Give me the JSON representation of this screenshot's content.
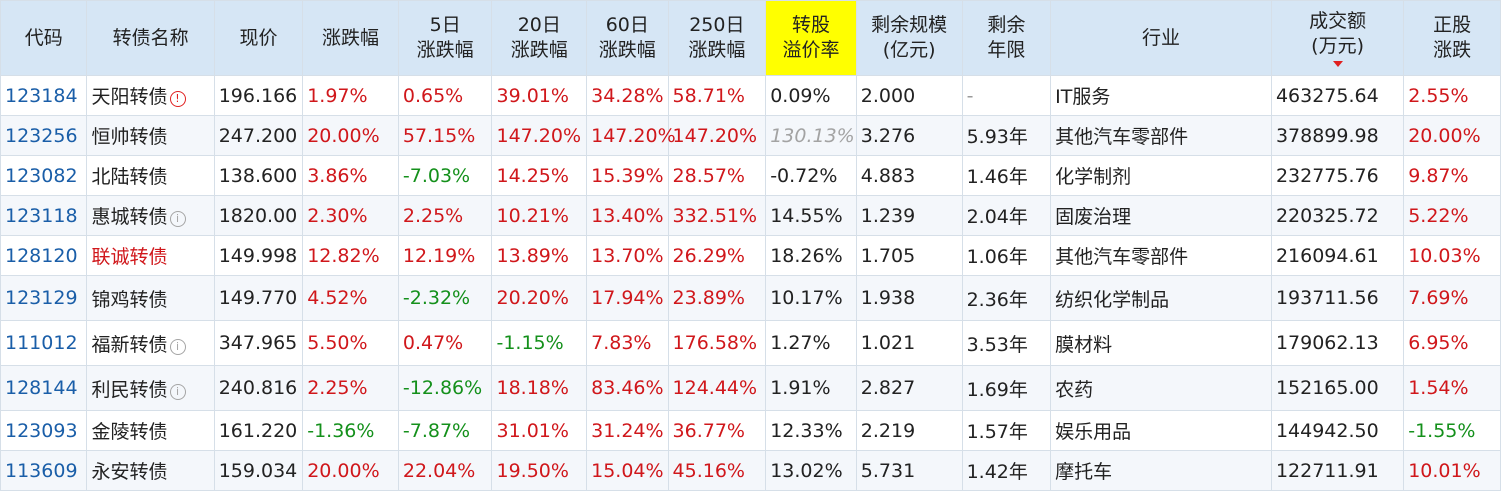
{
  "headers": [
    {
      "line1": "代码",
      "line2": ""
    },
    {
      "line1": "转债名称",
      "line2": ""
    },
    {
      "line1": "现价",
      "line2": ""
    },
    {
      "line1": "涨跌幅",
      "line2": ""
    },
    {
      "line1": "5日",
      "line2": "涨跌幅"
    },
    {
      "line1": "20日",
      "line2": "涨跌幅"
    },
    {
      "line1": "60日",
      "line2": "涨跌幅"
    },
    {
      "line1": "250日",
      "line2": "涨跌幅"
    },
    {
      "line1": "转股",
      "line2": "溢价率"
    },
    {
      "line1": "剩余规模",
      "line2": "(亿元)"
    },
    {
      "line1": "剩余",
      "line2": "年限"
    },
    {
      "line1": "行业",
      "line2": ""
    },
    {
      "line1": "成交额",
      "line2": "(万元)"
    },
    {
      "line1": "正股",
      "line2": "涨跌"
    }
  ],
  "sort_column": "成交额",
  "rows": [
    {
      "code": "123184",
      "name": "天阳转债",
      "name_color": "default",
      "icon": "alert",
      "price": "196.166",
      "chg": "1.97%",
      "chg5": "0.65%",
      "chg20": "39.01%",
      "chg60": "34.28%",
      "chg250": "58.71%",
      "premium": "0.09%",
      "premium_style": "default",
      "scale": "2.000",
      "years": "-",
      "industry": "IT服务",
      "turnover": "463275.64",
      "stock_chg": "2.55%"
    },
    {
      "code": "123256",
      "name": "恒帅转债",
      "name_color": "default",
      "icon": "none",
      "price": "247.200",
      "chg": "20.00%",
      "chg5": "57.15%",
      "chg20": "147.20%",
      "chg60": "147.20%",
      "chg250": "147.20%",
      "premium": "130.13%",
      "premium_style": "grey",
      "scale": "3.276",
      "years": "5.93年",
      "industry": "其他汽车零部件",
      "turnover": "378899.98",
      "stock_chg": "20.00%"
    },
    {
      "code": "123082",
      "name": "北陆转债",
      "name_color": "default",
      "icon": "none",
      "price": "138.600",
      "chg": "3.86%",
      "chg5": "-7.03%",
      "chg20": "14.25%",
      "chg60": "15.39%",
      "chg250": "28.57%",
      "premium": "-0.72%",
      "premium_style": "default",
      "scale": "4.883",
      "years": "1.46年",
      "industry": "化学制剂",
      "turnover": "232775.76",
      "stock_chg": "9.87%"
    },
    {
      "code": "123118",
      "name": "惠城转债",
      "name_color": "default",
      "icon": "info",
      "price": "1820.00",
      "chg": "2.30%",
      "chg5": "2.25%",
      "chg20": "10.21%",
      "chg60": "13.40%",
      "chg250": "332.51%",
      "premium": "14.55%",
      "premium_style": "default",
      "scale": "1.239",
      "years": "2.04年",
      "industry": "固废治理",
      "turnover": "220325.72",
      "stock_chg": "5.22%"
    },
    {
      "code": "128120",
      "name": "联诚转债",
      "name_color": "red",
      "icon": "none",
      "price": "149.998",
      "chg": "12.82%",
      "chg5": "12.19%",
      "chg20": "13.89%",
      "chg60": "13.70%",
      "chg250": "26.29%",
      "premium": "18.26%",
      "premium_style": "default",
      "scale": "1.705",
      "years": "1.06年",
      "industry": "其他汽车零部件",
      "turnover": "216094.61",
      "stock_chg": "10.03%"
    },
    {
      "code": "123129",
      "name": "锦鸡转债",
      "name_color": "default",
      "icon": "none",
      "price": "149.770",
      "chg": "4.52%",
      "chg5": "-2.32%",
      "chg20": "20.20%",
      "chg60": "17.94%",
      "chg250": "23.89%",
      "premium": "10.17%",
      "premium_style": "default",
      "scale": "1.938",
      "years": "2.36年",
      "industry": "纺织化学制品",
      "turnover": "193711.56",
      "stock_chg": "7.69%"
    },
    {
      "code": "111012",
      "name": "福新转债",
      "name_color": "default",
      "icon": "info",
      "price": "347.965",
      "chg": "5.50%",
      "chg5": "0.47%",
      "chg20": "-1.15%",
      "chg60": "7.83%",
      "chg250": "176.58%",
      "premium": "1.27%",
      "premium_style": "default",
      "scale": "1.021",
      "years": "3.53年",
      "industry": "膜材料",
      "turnover": "179062.13",
      "stock_chg": "6.95%"
    },
    {
      "code": "128144",
      "name": "利民转债",
      "name_color": "default",
      "icon": "info",
      "price": "240.816",
      "chg": "2.25%",
      "chg5": "-12.86%",
      "chg20": "18.18%",
      "chg60": "83.46%",
      "chg250": "124.44%",
      "premium": "1.91%",
      "premium_style": "default",
      "scale": "2.827",
      "years": "1.69年",
      "industry": "农药",
      "turnover": "152165.00",
      "stock_chg": "1.54%"
    },
    {
      "code": "123093",
      "name": "金陵转债",
      "name_color": "default",
      "icon": "none",
      "price": "161.220",
      "chg": "-1.36%",
      "chg5": "-7.87%",
      "chg20": "31.01%",
      "chg60": "31.24%",
      "chg250": "36.77%",
      "premium": "12.33%",
      "premium_style": "default",
      "scale": "2.219",
      "years": "1.57年",
      "industry": "娱乐用品",
      "turnover": "144942.50",
      "stock_chg": "-1.55%"
    },
    {
      "code": "113609",
      "name": "永安转债",
      "name_color": "default",
      "icon": "none",
      "price": "159.034",
      "chg": "20.00%",
      "chg5": "22.04%",
      "chg20": "19.50%",
      "chg60": "15.04%",
      "chg250": "45.16%",
      "premium": "13.02%",
      "premium_style": "default",
      "scale": "5.731",
      "years": "1.42年",
      "industry": "摩托车",
      "turnover": "122711.91",
      "stock_chg": "10.01%"
    }
  ],
  "colors": {
    "up": "#d0171b",
    "down": "#14901b",
    "code": "#1a5ea8",
    "header_bg": "#d6e6f5",
    "highlight": "#ffff00"
  }
}
